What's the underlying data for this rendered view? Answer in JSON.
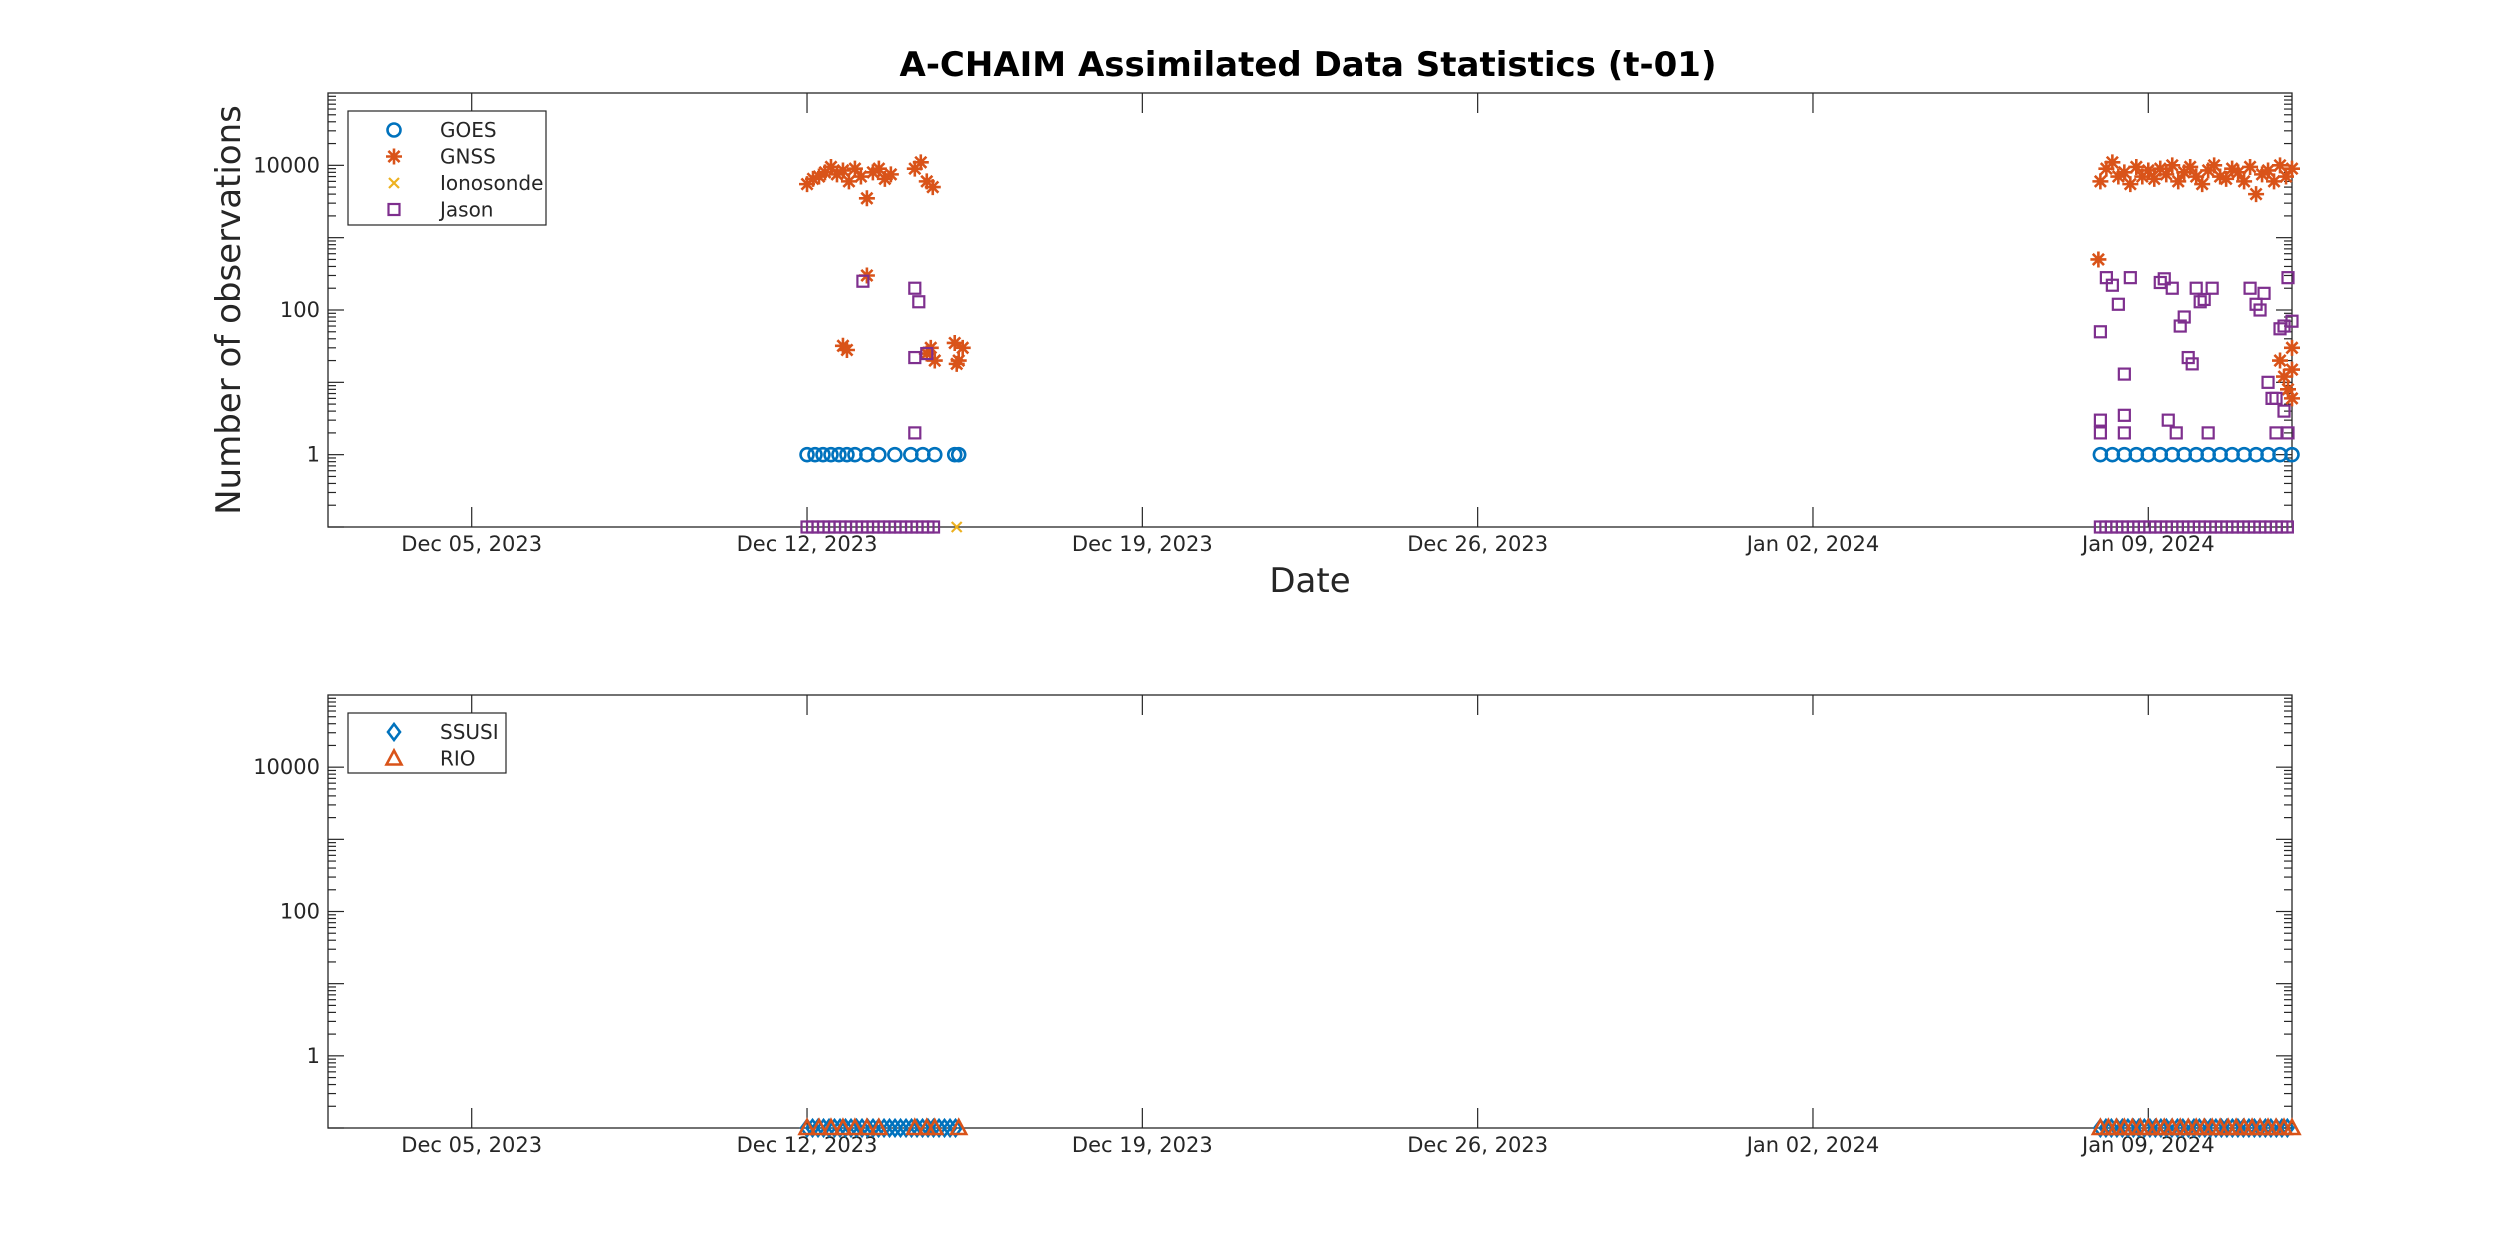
{
  "figure": {
    "title": "A-CHAIM Assimilated Data Statistics (t-01)"
  },
  "chart_data": [
    {
      "type": "scatter",
      "title": "A-CHAIM Assimilated Data Statistics (t-01)",
      "xlabel": "Date",
      "ylabel": "Number of observations",
      "yscale": "log",
      "xlim": [
        "2023-12-02",
        "2024-01-12"
      ],
      "ylim": [
        0.1,
        100000
      ],
      "x_ticks": [
        "Dec 05, 2023",
        "Dec 12, 2023",
        "Dec 19, 2023",
        "Dec 26, 2023",
        "Jan 02, 2024",
        "Jan 09, 2024"
      ],
      "x_tick_dates": [
        "2023-12-05",
        "2023-12-12",
        "2023-12-19",
        "2023-12-26",
        "2024-01-02",
        "2024-01-09"
      ],
      "y_ticks": [
        "1",
        "100",
        "10000"
      ],
      "y_tick_values": [
        1,
        100,
        10000
      ],
      "grid": false,
      "legend_position": "top-left",
      "series": [
        {
          "name": "GOES",
          "marker": "circle",
          "color": "#0072BD",
          "points": [
            [
              "2023-12-12 00:00",
              1
            ],
            [
              "2023-12-12 04:00",
              1
            ],
            [
              "2023-12-12 08:00",
              1
            ],
            [
              "2023-12-12 12:00",
              1
            ],
            [
              "2023-12-12 16:00",
              1
            ],
            [
              "2023-12-12 20:00",
              1
            ],
            [
              "2023-12-13 00:00",
              1
            ],
            [
              "2023-12-13 06:00",
              1
            ],
            [
              "2023-12-13 12:00",
              1
            ],
            [
              "2023-12-13 20:00",
              1
            ],
            [
              "2023-12-14 04:00",
              1
            ],
            [
              "2023-12-14 10:00",
              1
            ],
            [
              "2023-12-14 16:00",
              1
            ],
            [
              "2023-12-15 02:00",
              1
            ],
            [
              "2023-12-15 04:00",
              1
            ],
            [
              "2024-01-08 00:00",
              1
            ],
            [
              "2024-01-08 06:00",
              1
            ],
            [
              "2024-01-08 12:00",
              1
            ],
            [
              "2024-01-08 18:00",
              1
            ],
            [
              "2024-01-09 00:00",
              1
            ],
            [
              "2024-01-09 06:00",
              1
            ],
            [
              "2024-01-09 12:00",
              1
            ],
            [
              "2024-01-09 18:00",
              1
            ],
            [
              "2024-01-10 00:00",
              1
            ],
            [
              "2024-01-10 06:00",
              1
            ],
            [
              "2024-01-10 12:00",
              1
            ],
            [
              "2024-01-10 18:00",
              1
            ],
            [
              "2024-01-11 00:00",
              1
            ],
            [
              "2024-01-11 06:00",
              1
            ],
            [
              "2024-01-11 12:00",
              1
            ],
            [
              "2024-01-11 18:00",
              1
            ],
            [
              "2024-01-12 00:00",
              1
            ]
          ]
        },
        {
          "name": "GNSS",
          "marker": "asterisk",
          "color": "#D95319",
          "points": [
            [
              "2023-12-12 00:00",
              5500
            ],
            [
              "2023-12-12 03:00",
              6500
            ],
            [
              "2023-12-12 06:00",
              7000
            ],
            [
              "2023-12-12 09:00",
              8000
            ],
            [
              "2023-12-12 12:00",
              9500
            ],
            [
              "2023-12-12 15:00",
              7500
            ],
            [
              "2023-12-12 18:00",
              8500
            ],
            [
              "2023-12-12 21:00",
              6000
            ],
            [
              "2023-12-13 00:00",
              9000
            ],
            [
              "2023-12-13 03:00",
              7000
            ],
            [
              "2023-12-13 06:00",
              3500
            ],
            [
              "2023-12-13 09:00",
              8000
            ],
            [
              "2023-12-13 12:00",
              9000
            ],
            [
              "2023-12-13 15:00",
              6500
            ],
            [
              "2023-12-13 18:00",
              7500
            ],
            [
              "2023-12-14 06:00",
              9000
            ],
            [
              "2023-12-14 09:00",
              11000
            ],
            [
              "2023-12-14 12:00",
              6000
            ],
            [
              "2023-12-14 15:00",
              5000
            ],
            [
              "2023-12-13 06:00",
              300
            ],
            [
              "2023-12-12 18:00",
              32
            ],
            [
              "2023-12-12 20:00",
              28
            ],
            [
              "2023-12-14 12:00",
              25
            ],
            [
              "2023-12-14 14:00",
              30
            ],
            [
              "2023-12-14 16:00",
              20
            ],
            [
              "2023-12-15 02:00",
              35
            ],
            [
              "2023-12-15 04:00",
              20
            ],
            [
              "2023-12-15 06:00",
              30
            ],
            [
              "2023-12-15 03:00",
              18
            ],
            [
              "2024-01-08 00:00",
              6000
            ],
            [
              "2024-01-08 03:00",
              9000
            ],
            [
              "2024-01-08 06:00",
              11000
            ],
            [
              "2024-01-08 09:00",
              7000
            ],
            [
              "2024-01-08 12:00",
              8000
            ],
            [
              "2024-01-08 15:00",
              5500
            ],
            [
              "2024-01-08 18:00",
              9500
            ],
            [
              "2024-01-08 21:00",
              7000
            ],
            [
              "2024-01-09 00:00",
              8500
            ],
            [
              "2024-01-09 03:00",
              6500
            ],
            [
              "2024-01-09 06:00",
              9000
            ],
            [
              "2024-01-09 09:00",
              7500
            ],
            [
              "2024-01-09 12:00",
              10000
            ],
            [
              "2024-01-09 15:00",
              6000
            ],
            [
              "2024-01-09 18:00",
              8000
            ],
            [
              "2024-01-09 21:00",
              9500
            ],
            [
              "2024-01-10 00:00",
              7000
            ],
            [
              "2024-01-10 03:00",
              5500
            ],
            [
              "2024-01-10 06:00",
              8500
            ],
            [
              "2024-01-10 09:00",
              10000
            ],
            [
              "2024-01-10 12:00",
              7000
            ],
            [
              "2024-01-10 15:00",
              6500
            ],
            [
              "2024-01-10 18:00",
              9000
            ],
            [
              "2024-01-10 21:00",
              8000
            ],
            [
              "2024-01-11 00:00",
              6000
            ],
            [
              "2024-01-11 03:00",
              9500
            ],
            [
              "2024-01-11 06:00",
              4000
            ],
            [
              "2024-01-11 09:00",
              7500
            ],
            [
              "2024-01-11 12:00",
              8500
            ],
            [
              "2024-01-11 15:00",
              6000
            ],
            [
              "2024-01-11 18:00",
              10000
            ],
            [
              "2024-01-11 21:00",
              7000
            ],
            [
              "2024-01-12 00:00",
              9000
            ],
            [
              "2024-01-07 23:00",
              500
            ],
            [
              "2024-01-11 18:00",
              20
            ],
            [
              "2024-01-11 20:00",
              12
            ],
            [
              "2024-01-11 22:00",
              8
            ],
            [
              "2024-01-12 00:00",
              30
            ],
            [
              "2024-01-12 00:00",
              15
            ],
            [
              "2024-01-12 00:00",
              6
            ]
          ]
        },
        {
          "name": "Ionosonde",
          "marker": "x",
          "color": "#EDB120",
          "points": [
            [
              "2023-12-15 03:00",
              0.1
            ]
          ]
        },
        {
          "name": "Jason",
          "marker": "square",
          "color": "#7E2F8E",
          "points": [
            [
              "2023-12-13 04:00",
              250
            ],
            [
              "2023-12-14 06:00",
              200
            ],
            [
              "2023-12-14 08:00",
              130
            ],
            [
              "2023-12-14 06:00",
              22
            ],
            [
              "2023-12-14 12:00",
              25
            ],
            [
              "2023-12-14 06:00",
              2
            ],
            [
              "2024-01-08 00:00",
              50
            ],
            [
              "2024-01-08 00:00",
              3
            ],
            [
              "2024-01-08 00:00",
              2
            ],
            [
              "2024-01-08 03:00",
              280
            ],
            [
              "2024-01-08 06:00",
              220
            ],
            [
              "2024-01-08 09:00",
              120
            ],
            [
              "2024-01-08 12:00",
              13
            ],
            [
              "2024-01-08 12:00",
              3.5
            ],
            [
              "2024-01-08 12:00",
              2
            ],
            [
              "2024-01-08 15:00",
              280
            ],
            [
              "2024-01-09 06:00",
              240
            ],
            [
              "2024-01-09 08:00",
              270
            ],
            [
              "2024-01-09 12:00",
              200
            ],
            [
              "2024-01-09 10:00",
              3
            ],
            [
              "2024-01-09 14:00",
              2
            ],
            [
              "2024-01-09 16:00",
              60
            ],
            [
              "2024-01-09 18:00",
              80
            ],
            [
              "2024-01-09 20:00",
              22
            ],
            [
              "2024-01-09 22:00",
              18
            ],
            [
              "2024-01-10 00:00",
              200
            ],
            [
              "2024-01-10 02:00",
              130
            ],
            [
              "2024-01-10 04:00",
              140
            ],
            [
              "2024-01-10 06:00",
              2
            ],
            [
              "2024-01-10 08:00",
              200
            ],
            [
              "2024-01-11 03:00",
              200
            ],
            [
              "2024-01-11 06:00",
              120
            ],
            [
              "2024-01-11 08:00",
              100
            ],
            [
              "2024-01-11 10:00",
              170
            ],
            [
              "2024-01-11 12:00",
              10
            ],
            [
              "2024-01-11 14:00",
              6
            ],
            [
              "2024-01-11 16:00",
              2
            ],
            [
              "2024-01-11 18:00",
              55
            ],
            [
              "2024-01-11 20:00",
              60
            ],
            [
              "2024-01-11 22:00",
              280
            ],
            [
              "2024-01-12 00:00",
              70
            ],
            [
              "2024-01-11 20:00",
              4
            ],
            [
              "2024-01-11 22:00",
              2
            ],
            [
              "2024-01-11 16:00",
              6
            ]
          ],
          "floor_runs": [
            [
              "2023-12-12 00:00",
              "2023-12-14 16:00"
            ],
            [
              "2024-01-08 00:00",
              "2024-01-12 00:00"
            ]
          ]
        }
      ]
    },
    {
      "type": "scatter",
      "xlabel": "",
      "ylabel": "",
      "yscale": "log",
      "xlim": [
        "2023-12-02",
        "2024-01-12"
      ],
      "ylim": [
        0.1,
        100000
      ],
      "x_ticks": [
        "Dec 05, 2023",
        "Dec 12, 2023",
        "Dec 19, 2023",
        "Dec 26, 2023",
        "Jan 02, 2024",
        "Jan 09, 2024"
      ],
      "x_tick_dates": [
        "2023-12-05",
        "2023-12-12",
        "2023-12-19",
        "2023-12-26",
        "2024-01-02",
        "2024-01-09"
      ],
      "y_ticks": [
        "1",
        "100",
        "10000"
      ],
      "y_tick_values": [
        1,
        100,
        10000
      ],
      "grid": false,
      "legend_position": "top-left",
      "series": [
        {
          "name": "SSUSI",
          "marker": "diamond",
          "color": "#0072BD",
          "points": [],
          "floor_runs": [
            [
              "2023-12-12 00:00",
              "2023-12-15 04:00"
            ],
            [
              "2024-01-08 00:00",
              "2024-01-12 00:00"
            ]
          ]
        },
        {
          "name": "RIO",
          "marker": "triangle",
          "color": "#D95319",
          "points": [
            [
              "2023-12-12 00:00",
              0.1
            ],
            [
              "2023-12-12 06:00",
              0.1
            ],
            [
              "2023-12-12 12:00",
              0.1
            ],
            [
              "2023-12-12 18:00",
              0.1
            ],
            [
              "2023-12-13 00:00",
              0.1
            ],
            [
              "2023-12-13 06:00",
              0.1
            ],
            [
              "2023-12-13 12:00",
              0.1
            ],
            [
              "2023-12-14 06:00",
              0.1
            ],
            [
              "2023-12-14 12:00",
              0.1
            ],
            [
              "2023-12-14 16:00",
              0.1
            ],
            [
              "2023-12-15 04:00",
              0.1
            ],
            [
              "2024-01-08 00:00",
              0.1
            ],
            [
              "2024-01-08 04:00",
              0.1
            ],
            [
              "2024-01-08 08:00",
              0.1
            ],
            [
              "2024-01-08 12:00",
              0.1
            ],
            [
              "2024-01-08 16:00",
              0.1
            ],
            [
              "2024-01-08 20:00",
              0.1
            ],
            [
              "2024-01-09 00:00",
              0.1
            ],
            [
              "2024-01-09 04:00",
              0.1
            ],
            [
              "2024-01-09 08:00",
              0.1
            ],
            [
              "2024-01-09 12:00",
              0.1
            ],
            [
              "2024-01-09 16:00",
              0.1
            ],
            [
              "2024-01-09 20:00",
              0.1
            ],
            [
              "2024-01-10 00:00",
              0.1
            ],
            [
              "2024-01-10 04:00",
              0.1
            ],
            [
              "2024-01-10 08:00",
              0.1
            ],
            [
              "2024-01-10 12:00",
              0.1
            ],
            [
              "2024-01-10 16:00",
              0.1
            ],
            [
              "2024-01-10 20:00",
              0.1
            ],
            [
              "2024-01-11 00:00",
              0.1
            ],
            [
              "2024-01-11 04:00",
              0.1
            ],
            [
              "2024-01-11 08:00",
              0.1
            ],
            [
              "2024-01-11 12:00",
              0.1
            ],
            [
              "2024-01-11 16:00",
              0.1
            ],
            [
              "2024-01-11 20:00",
              0.1
            ],
            [
              "2024-01-12 00:00",
              0.1
            ]
          ]
        }
      ]
    }
  ]
}
